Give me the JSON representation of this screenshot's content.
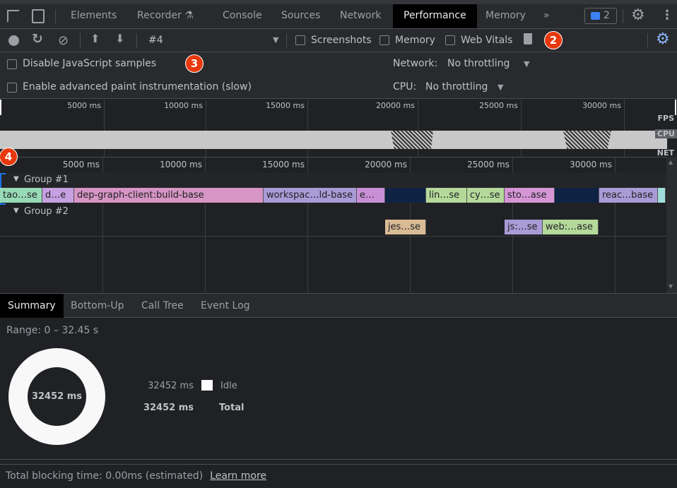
{
  "tabbar": {
    "tabs": [
      "Elements",
      "Recorder",
      "Console",
      "Sources",
      "Network",
      "Performance",
      "Memory"
    ],
    "active": "Performance",
    "issues_count": "2"
  },
  "toolbar": {
    "recording": "#4",
    "screenshots": "Screenshots",
    "memory": "Memory",
    "web_vitals": "Web Vitals"
  },
  "settings": {
    "disable_js": "Disable JavaScript samples",
    "paint": "Enable advanced paint instrumentation (slow)",
    "network_label": "Network:",
    "network_value": "No throttling",
    "cpu_label": "CPU:",
    "cpu_value": "No throttling"
  },
  "overview": {
    "ticks": [
      "5000 ms",
      "10000 ms",
      "15000 ms",
      "20000 ms",
      "25000 ms",
      "30000 ms"
    ],
    "tracks": [
      "FPS",
      "CPU",
      "NET"
    ]
  },
  "timeline": {
    "ticks": [
      "5000 ms",
      "10000 ms",
      "15000 ms",
      "20000 ms",
      "25000 ms",
      "30000 ms"
    ],
    "groups": [
      {
        "name": "Group #1",
        "bars": [
          {
            "label": "tao…se",
            "start": 0,
            "end": 2070,
            "color": "#98d9b6"
          },
          {
            "label": "d…e",
            "start": 2070,
            "end": 3620,
            "color": "#c6a0e0"
          },
          {
            "label": "dep-graph-client:build-base",
            "start": 3620,
            "end": 12860,
            "color": "#d695c4"
          },
          {
            "label": "workspac…ld-base",
            "start": 12860,
            "end": 17410,
            "color": "#a89bd6"
          },
          {
            "label": "e…",
            "start": 17410,
            "end": 18790,
            "color": "#c98fd6"
          },
          {
            "label": "",
            "start": 18790,
            "end": 20790,
            "color": "#0e2244"
          },
          {
            "label": "lin…se",
            "start": 20790,
            "end": 22790,
            "color": "#b4d99a"
          },
          {
            "label": "cy…se",
            "start": 22790,
            "end": 24620,
            "color": "#b4d99a"
          },
          {
            "label": "sto…ase",
            "start": 24620,
            "end": 27070,
            "color": "#d696d6"
          },
          {
            "label": "",
            "start": 27070,
            "end": 29240,
            "color": "#0e2244"
          },
          {
            "label": "reac…base",
            "start": 29240,
            "end": 32100,
            "color": "#a89bd6"
          },
          {
            "label": "",
            "start": 32100,
            "end": 32480,
            "color": "#9fdcdc"
          }
        ]
      },
      {
        "name": "Group #2",
        "bars": [
          {
            "label": "jes…se",
            "start": 18790,
            "end": 20790,
            "color": "#d9bb95"
          },
          {
            "label": "js:…se",
            "start": 24620,
            "end": 26480,
            "color": "#a89bd6"
          },
          {
            "label": "web:…ase",
            "start": 26480,
            "end": 29200,
            "color": "#b4d99a"
          }
        ]
      }
    ]
  },
  "bottom_tabs": [
    "Summary",
    "Bottom-Up",
    "Call Tree",
    "Event Log"
  ],
  "summary": {
    "range": "Range: 0 – 32.45 s",
    "donut_center": "32452 ms",
    "idle_value": "32452 ms",
    "idle_label": "Idle",
    "idle_color": "#ffffff",
    "total_value": "32452 ms",
    "total_label": "Total"
  },
  "footer": {
    "text": "Total blocking time: 0.00ms (estimated)",
    "link": "Learn more"
  },
  "annotations": [
    "2",
    "3",
    "4"
  ]
}
